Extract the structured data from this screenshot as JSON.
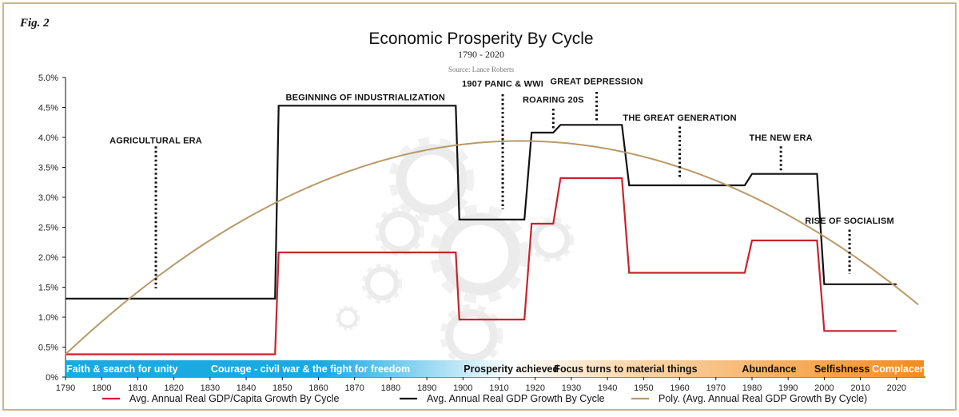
{
  "figure_label": "Fig. 2",
  "colors": {
    "per_capita": "#c8232c",
    "gdp": "#111111",
    "poly": "#b89a68",
    "frame": "#c9b58e",
    "band_left": "#1ba9e1",
    "band_mid": "#ffffff",
    "band_right": "#f28c1e"
  },
  "chart_data": {
    "type": "line",
    "title": "Economic Prosperity By Cycle",
    "subtitle": "1790 - 2020",
    "source": "Source: Lance Roberts",
    "xlim": [
      1790,
      2028
    ],
    "ylim": [
      0,
      5.0
    ],
    "x_ticks": [
      1790,
      1800,
      1810,
      1820,
      1830,
      1840,
      1850,
      1860,
      1870,
      1880,
      1890,
      1900,
      1910,
      1920,
      1930,
      1940,
      1950,
      1960,
      1970,
      1980,
      1990,
      2000,
      2010,
      2020
    ],
    "y_ticks": [
      {
        "value": 0,
        "label": "0%"
      },
      {
        "value": 0.5,
        "label": "0.5%"
      },
      {
        "value": 1.0,
        "label": "1.0%"
      },
      {
        "value": 1.5,
        "label": "1.5%"
      },
      {
        "value": 2.0,
        "label": "2.0%"
      },
      {
        "value": 2.5,
        "label": "2.5%"
      },
      {
        "value": 3.0,
        "label": "3.0%"
      },
      {
        "value": 3.5,
        "label": "3.5%"
      },
      {
        "value": 4.0,
        "label": "4.0%"
      },
      {
        "value": 4.5,
        "label": "4.5%"
      },
      {
        "value": 5.0,
        "label": "5.0%"
      }
    ],
    "grid": false,
    "legend_position": "bottom",
    "series": [
      {
        "name": "Avg. Annual Real GDP/Capita Growth By Cycle",
        "color_key": "per_capita",
        "points": [
          [
            1790,
            0.38
          ],
          [
            1848,
            0.38
          ],
          [
            1849,
            2.08
          ],
          [
            1898,
            2.08
          ],
          [
            1899,
            0.96
          ],
          [
            1917,
            0.96
          ],
          [
            1919,
            2.56
          ],
          [
            1925,
            2.56
          ],
          [
            1927,
            3.32
          ],
          [
            1944,
            3.32
          ],
          [
            1946,
            1.74
          ],
          [
            1978,
            1.74
          ],
          [
            1980,
            2.28
          ],
          [
            1998,
            2.28
          ],
          [
            2000,
            0.77
          ],
          [
            2020,
            0.77
          ]
        ]
      },
      {
        "name": "Avg. Annual Real GDP Growth By Cycle",
        "color_key": "gdp",
        "points": [
          [
            1790,
            1.31
          ],
          [
            1848,
            1.31
          ],
          [
            1849,
            4.53
          ],
          [
            1898,
            4.53
          ],
          [
            1899,
            2.63
          ],
          [
            1917,
            2.63
          ],
          [
            1919,
            4.08
          ],
          [
            1925,
            4.08
          ],
          [
            1927,
            4.21
          ],
          [
            1944,
            4.21
          ],
          [
            1946,
            3.2
          ],
          [
            1978,
            3.2
          ],
          [
            1980,
            3.39
          ],
          [
            1998,
            3.39
          ],
          [
            2000,
            1.55
          ],
          [
            2020,
            1.55
          ]
        ]
      },
      {
        "name": "Poly. (Avg. Annual Real GDP Growth By Cycle)",
        "color_key": "poly",
        "curve": "quadratic",
        "anchors": [
          [
            1790,
            0.38
          ],
          [
            1914,
            3.94
          ],
          [
            2027,
            1.16
          ]
        ]
      }
    ],
    "annotations": [
      {
        "label": "AGRICULTURAL ERA",
        "x": 1815,
        "y_text": 3.9,
        "y_top": 3.85,
        "y_bottom": 1.48
      },
      {
        "label": "BEGINNING OF INDUSTRIALIZATION",
        "x": 1873,
        "y_text": 4.62,
        "y_top": null,
        "y_bottom": null
      },
      {
        "label": "1907 PANIC & WWI",
        "x": 1911,
        "y_text": 4.85,
        "y_top": 4.72,
        "y_bottom": 2.8
      },
      {
        "label": "ROARING 20S",
        "x": 1925,
        "y_text": 4.58,
        "y_top": 4.48,
        "y_bottom": 4.13
      },
      {
        "label": "GREAT DEPRESSION",
        "x": 1937,
        "y_text": 4.89,
        "y_top": 4.76,
        "y_bottom": 4.28
      },
      {
        "label": "THE GREAT GENERATION",
        "x": 1960,
        "y_text": 4.28,
        "y_top": 4.18,
        "y_bottom": 3.3
      },
      {
        "label": "THE NEW ERA",
        "x": 1988,
        "y_text": 3.95,
        "y_top": 3.85,
        "y_bottom": 3.45
      },
      {
        "label": "RISE OF SOCIALISM",
        "x": 2007,
        "y_text": 2.56,
        "y_top": 2.46,
        "y_bottom": 1.72
      }
    ],
    "phase_band": [
      {
        "label": "Faith & search for unity",
        "x": 1790
      },
      {
        "label": "Courage - civil war & the fight for freedom",
        "x": 1830
      },
      {
        "label": "Prosperity achieved",
        "x": 1900
      },
      {
        "label": "Focus turns to material things",
        "x": 1925
      },
      {
        "label": "Abundance",
        "x": 1977
      },
      {
        "label": "Selfishness",
        "x": 1997
      },
      {
        "label": "Complacency",
        "x": 2013
      }
    ]
  }
}
